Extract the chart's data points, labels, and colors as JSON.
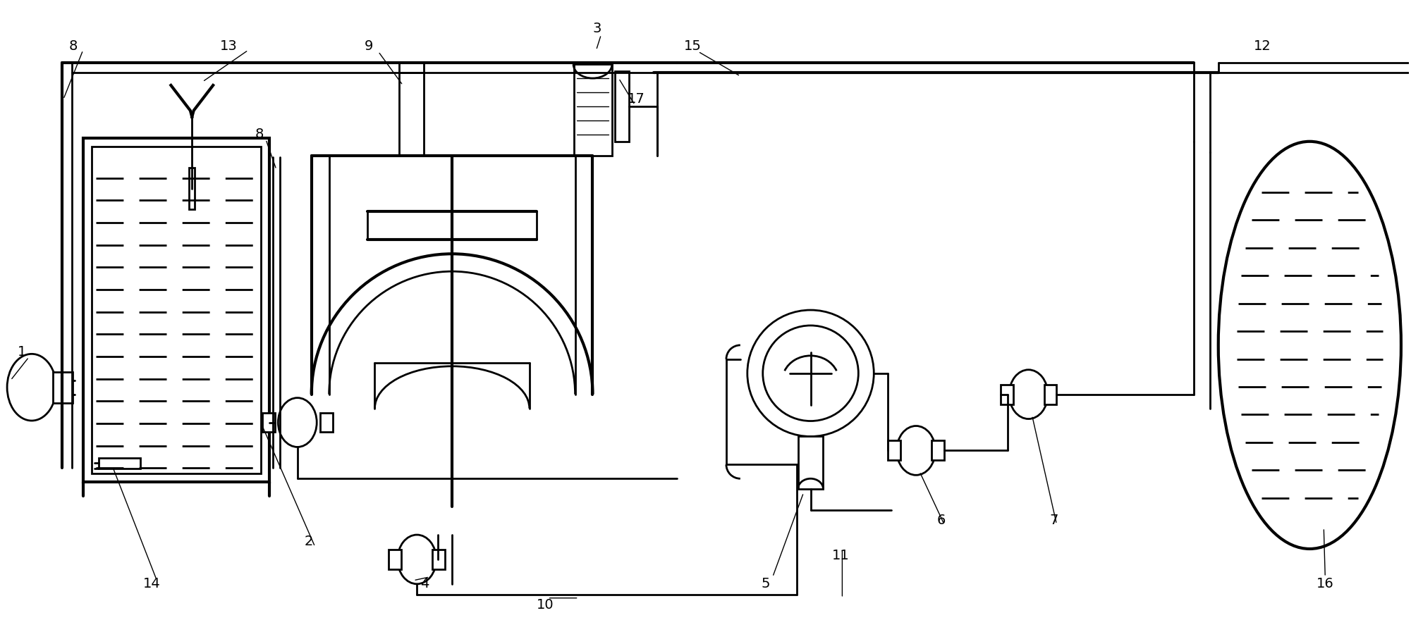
{
  "bg_color": "#ffffff",
  "lc": "#000000",
  "lw": 2.0,
  "tlw": 3.0,
  "fig_w": 20.01,
  "fig_h": 8.97
}
